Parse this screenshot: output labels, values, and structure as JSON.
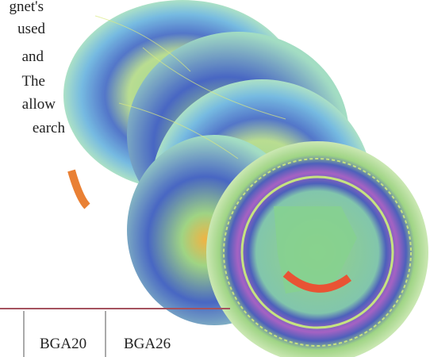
{
  "text_lines": [
    "gnet's",
    "used",
    "and",
    "The",
    "allow",
    "earch"
  ],
  "table": {
    "header": [
      "BGA20",
      "BGA26"
    ]
  }
}
